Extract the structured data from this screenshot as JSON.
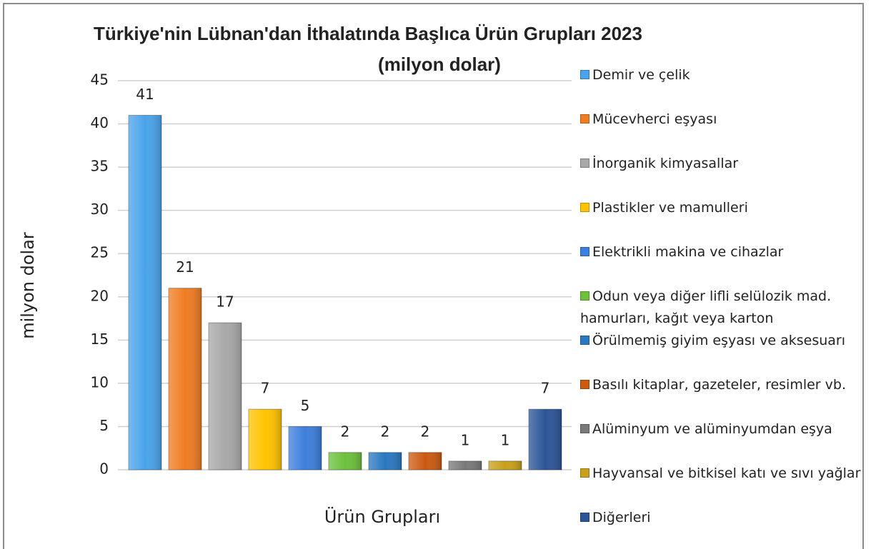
{
  "chart_data": {
    "type": "bar",
    "title": [
      "Türkiye'nin Lübnan'dan İthalatında Başlıca Ürün Grupları 2023",
      "(milyon dolar)"
    ],
    "y_label": "milyon dolar",
    "x_label": "Ürün Grupları",
    "categories": [
      "Demir ve çelik",
      "Mücevherci eşyası",
      "İnorganik kimyasallar",
      "Plastikler ve mamulleri",
      "Elektrikli makina ve cihazlar",
      "Odun veya diğer lifli selülozik mad. hamurları, kağıt veya karton",
      "Örülmemiş giyim eşyası ve aksesuarı",
      "Basılı kitaplar, gazeteler, resimler vb.",
      "Alüminyum ve alüminyumdan eşya",
      "Hayvansal ve bitkisel katı ve sıvı yağlar",
      "Diğerleri"
    ],
    "values": [
      41,
      21,
      17,
      7,
      5,
      2,
      2,
      2,
      1,
      1,
      7
    ],
    "colors": [
      "#4aa3ea",
      "#f07c22",
      "#a8a8a8",
      "#ffc400",
      "#3d7fdc",
      "#6cc03c",
      "#2a78c0",
      "#cc5a12",
      "#7a7a7a",
      "#c9a01a",
      "#2c5598"
    ],
    "ylim": [
      0,
      45
    ],
    "yticks": [
      0,
      5,
      10,
      15,
      20,
      25,
      30,
      35,
      40,
      45
    ],
    "grid": true,
    "legend": "right"
  }
}
